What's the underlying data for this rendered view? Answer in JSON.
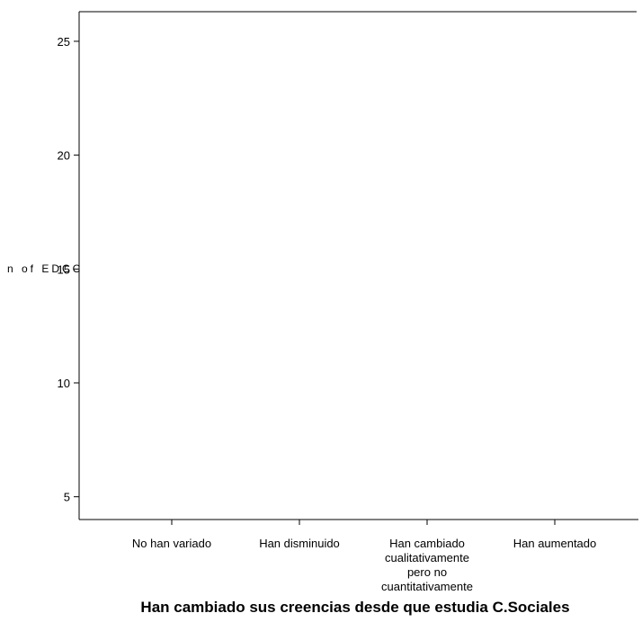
{
  "chart_data": {
    "type": "line",
    "title": "",
    "xlabel": "Han cambiado sus creencias desde que estudia C.Sociales",
    "ylabel": "n of EDCC",
    "categories": [
      "No han variado",
      "Han disminuido",
      "Han cambiado cualitativamente pero no cuantitativamente",
      "Han aumentado"
    ],
    "category_label_lines": [
      [
        "No han variado"
      ],
      [
        "Han disminuido"
      ],
      [
        "Han cambiado",
        "cualitativamente",
        "pero no",
        "cuantitativamente"
      ],
      [
        "Han aumentado"
      ]
    ],
    "yticks": [
      5,
      10,
      15,
      20,
      25
    ],
    "ylim": [
      4,
      26.3
    ],
    "series": [],
    "grid": false,
    "legend": "none"
  }
}
